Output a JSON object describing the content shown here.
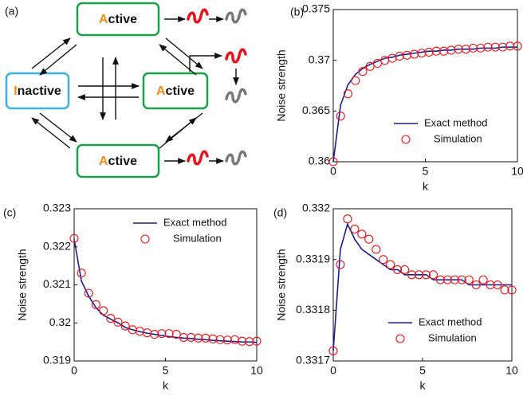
{
  "diagram": {
    "label": "(a)",
    "nodes": [
      {
        "initial": "A",
        "rest": "ctive"
      },
      {
        "initial": "I",
        "rest": "nactive"
      },
      {
        "initial": "A",
        "rest": "ctive"
      },
      {
        "initial": "A",
        "rest": "ctive"
      }
    ]
  },
  "chart_data": [
    {
      "type": "line",
      "label": "(b)",
      "xlabel": "k",
      "ylabel": "Noise strength",
      "xlim": [
        0,
        10
      ],
      "xticks": [
        0,
        5,
        10
      ],
      "ylim": [
        0.36,
        0.375
      ],
      "yticks": [
        0.36,
        0.365,
        0.37,
        0.375
      ],
      "legend": "lower right",
      "x": [
        0,
        0.4,
        0.8,
        1.2,
        1.6,
        2,
        2.4,
        2.8,
        3.2,
        3.6,
        4,
        4.4,
        4.8,
        5.2,
        5.6,
        6,
        6.4,
        6.8,
        7.2,
        7.6,
        8,
        8.4,
        8.8,
        9.2,
        9.6,
        10
      ],
      "series": [
        {
          "name": "Exact method",
          "type": "line",
          "color": "#1c1c8c",
          "values": [
            0.36,
            0.3656,
            0.3676,
            0.3686,
            0.3692,
            0.3696,
            0.3699,
            0.3702,
            0.3703,
            0.3705,
            0.3706,
            0.3707,
            0.3708,
            0.3709,
            0.3709,
            0.371,
            0.371,
            0.3711,
            0.3711,
            0.3711,
            0.3712,
            0.3712,
            0.3712,
            0.3713,
            0.3713,
            0.3713
          ]
        },
        {
          "name": "Simulation",
          "type": "scatter",
          "color": "#e8141c",
          "values": [
            0.36,
            0.3645,
            0.3667,
            0.368,
            0.3689,
            0.3694,
            0.3697,
            0.37,
            0.3702,
            0.3704,
            0.3705,
            0.3706,
            0.3707,
            0.3708,
            0.3709,
            0.3709,
            0.371,
            0.3711,
            0.3711,
            0.3712,
            0.3712,
            0.3713,
            0.3713,
            0.3713,
            0.3714,
            0.3714
          ]
        }
      ]
    },
    {
      "type": "line",
      "label": "(c)",
      "xlabel": "k",
      "ylabel": "Noise strength",
      "xlim": [
        0,
        10
      ],
      "xticks": [
        0,
        5,
        10
      ],
      "ylim": [
        0.319,
        0.323
      ],
      "yticks": [
        0.319,
        0.32,
        0.321,
        0.322,
        0.323
      ],
      "legend": "upper right",
      "x": [
        0,
        0.4,
        0.8,
        1.2,
        1.6,
        2,
        2.4,
        2.8,
        3.2,
        3.6,
        4,
        4.4,
        4.8,
        5.2,
        5.6,
        6,
        6.4,
        6.8,
        7.2,
        7.6,
        8,
        8.4,
        8.8,
        9.2,
        9.6,
        10
      ],
      "series": [
        {
          "name": "Exact method",
          "type": "line",
          "color": "#1c1c8c",
          "values": [
            0.3222,
            0.3211,
            0.3207,
            0.3204,
            0.3202,
            0.3201,
            0.32,
            0.31988,
            0.31982,
            0.31977,
            0.31973,
            0.3197,
            0.31967,
            0.31964,
            0.31962,
            0.3196,
            0.31959,
            0.31957,
            0.31956,
            0.31954,
            0.31953,
            0.31952,
            0.31951,
            0.3195,
            0.3195,
            0.31949
          ]
        },
        {
          "name": "Simulation",
          "type": "scatter",
          "color": "#e8141c",
          "values": [
            0.32222,
            0.32131,
            0.32078,
            0.32048,
            0.32032,
            0.32012,
            0.32002,
            0.31992,
            0.31982,
            0.31978,
            0.31974,
            0.3197,
            0.31972,
            0.31972,
            0.3197,
            0.31962,
            0.31962,
            0.3196,
            0.3196,
            0.31958,
            0.31956,
            0.31955,
            0.31956,
            0.31952,
            0.31951,
            0.31952
          ]
        }
      ]
    },
    {
      "type": "line",
      "label": "(d)",
      "xlabel": "k",
      "ylabel": "Noise strength",
      "xlim": [
        0,
        10
      ],
      "xticks": [
        0,
        5,
        10
      ],
      "ylim": [
        0.3317,
        0.332
      ],
      "yticks": [
        0.3317,
        0.3318,
        0.3319,
        0.332
      ],
      "legend": "lower right",
      "x": [
        0,
        0.4,
        0.8,
        1.2,
        1.6,
        2,
        2.4,
        2.8,
        3.2,
        3.6,
        4,
        4.4,
        4.8,
        5.2,
        5.6,
        6,
        6.4,
        6.8,
        7.2,
        7.6,
        8,
        8.4,
        8.8,
        9.2,
        9.6,
        10
      ],
      "series": [
        {
          "name": "Exact method",
          "type": "line",
          "color": "#1c1c8c",
          "values": [
            0.33172,
            0.33192,
            0.33197,
            0.33194,
            0.33192,
            0.33191,
            0.3319,
            0.33189,
            0.33188,
            0.33188,
            0.33187,
            0.33187,
            0.33187,
            0.33187,
            0.33186,
            0.33186,
            0.33186,
            0.33186,
            0.33186,
            0.33185,
            0.33185,
            0.33185,
            0.33185,
            0.33185,
            0.33185,
            0.33185
          ]
        },
        {
          "name": "Simulation",
          "type": "scatter",
          "color": "#e8141c",
          "values": [
            0.33172,
            0.33189,
            0.33198,
            0.33196,
            0.33195,
            0.33194,
            0.33192,
            0.3319,
            0.33189,
            0.33188,
            0.33188,
            0.33187,
            0.33187,
            0.33187,
            0.33187,
            0.33186,
            0.33186,
            0.33186,
            0.33186,
            0.33186,
            0.33185,
            0.33186,
            0.33185,
            0.33185,
            0.33184,
            0.33184
          ]
        }
      ]
    }
  ]
}
